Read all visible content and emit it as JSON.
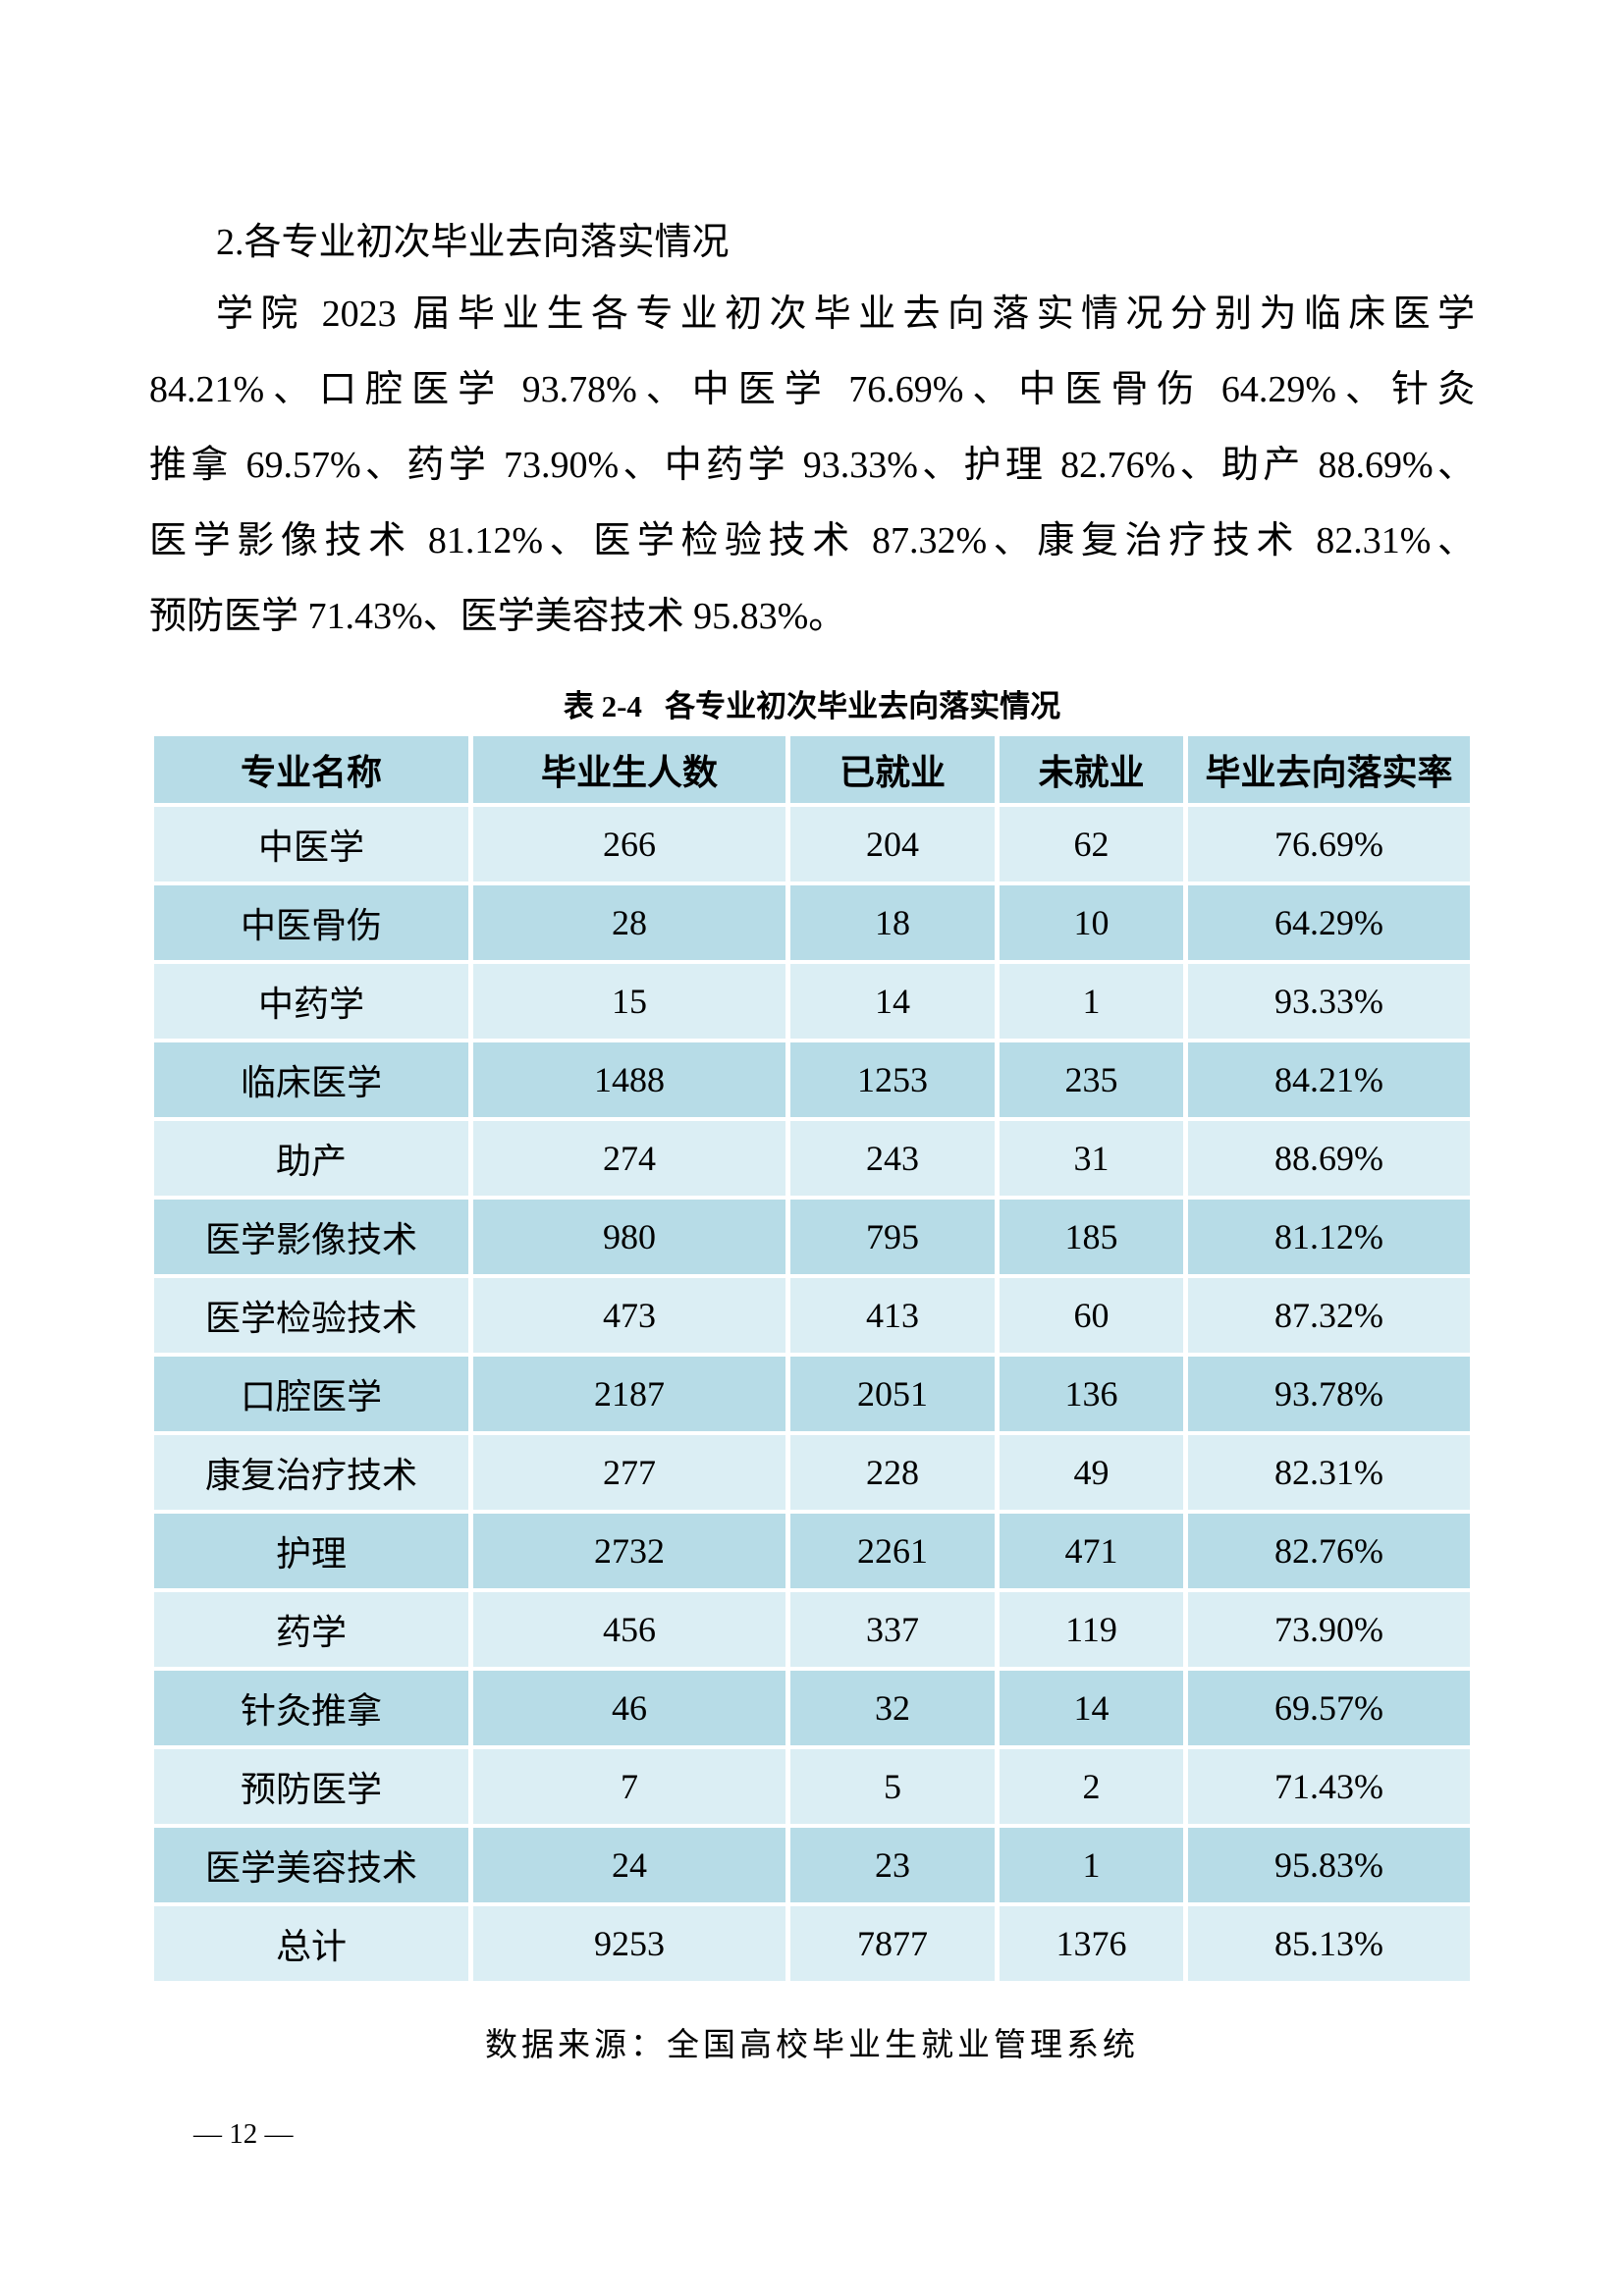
{
  "page": {
    "heading": "2.各专业初次毕业去向落实情况",
    "paragraph_lines": [
      "学院 2023 届毕业生各专业初次毕业去向落实情况分别为临床医学",
      "84.21%、口腔医学 93.78%、中医学 76.69%、中医骨伤 64.29%、针灸",
      "推拿 69.57%、药学 73.90%、中药学 93.33%、护理 82.76%、助产 88.69%、",
      "医学影像技术 81.12%、医学检验技术 87.32%、康复治疗技术 82.31%、",
      "预防医学 71.43%、医学美容技术 95.83%。"
    ],
    "page_number": "— 12 —"
  },
  "table": {
    "caption": "表 2-4   各专业初次毕业去向落实情况",
    "headers": [
      "专业名称",
      "毕业生人数",
      "已就业",
      "未就业",
      "毕业去向落实率"
    ],
    "rows": [
      [
        "中医学",
        "266",
        "204",
        "62",
        "76.69%"
      ],
      [
        "中医骨伤",
        "28",
        "18",
        "10",
        "64.29%"
      ],
      [
        "中药学",
        "15",
        "14",
        "1",
        "93.33%"
      ],
      [
        "临床医学",
        "1488",
        "1253",
        "235",
        "84.21%"
      ],
      [
        "助产",
        "274",
        "243",
        "31",
        "88.69%"
      ],
      [
        "医学影像技术",
        "980",
        "795",
        "185",
        "81.12%"
      ],
      [
        "医学检验技术",
        "473",
        "413",
        "60",
        "87.32%"
      ],
      [
        "口腔医学",
        "2187",
        "2051",
        "136",
        "93.78%"
      ],
      [
        "康复治疗技术",
        "277",
        "228",
        "49",
        "82.31%"
      ],
      [
        "护理",
        "2732",
        "2261",
        "471",
        "82.76%"
      ],
      [
        "药学",
        "456",
        "337",
        "119",
        "73.90%"
      ],
      [
        "针灸推拿",
        "46",
        "32",
        "14",
        "69.57%"
      ],
      [
        "预防医学",
        "7",
        "5",
        "2",
        "71.43%"
      ],
      [
        "医学美容技术",
        "24",
        "23",
        "1",
        "95.83%"
      ],
      [
        "总计",
        "9253",
        "7877",
        "1376",
        "85.13%"
      ]
    ],
    "source_note": "数据来源：全国高校毕业生就业管理系统"
  },
  "colors": {
    "row_dark": "#b7dce7",
    "row_light": "#dbeef4",
    "text": "#000000",
    "page_background": "#ffffff"
  }
}
